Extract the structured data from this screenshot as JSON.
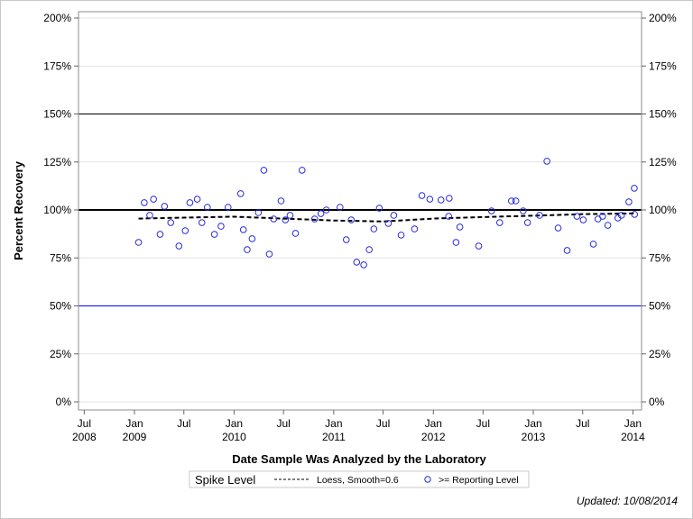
{
  "chart_data": {
    "type": "scatter",
    "xlabel": "Date Sample Was Analyzed by the Laboratory",
    "ylabel": "Percent Recovery",
    "xlim": [
      "2008-06-01",
      "2014-02-01"
    ],
    "ylim": [
      0,
      200
    ],
    "x_ticks": [
      {
        "date": "2008-07-01",
        "label": "Jul",
        "year": "2008"
      },
      {
        "date": "2009-01-01",
        "label": "Jan",
        "year": "2009"
      },
      {
        "date": "2009-07-01",
        "label": "Jul",
        "year": ""
      },
      {
        "date": "2010-01-01",
        "label": "Jan",
        "year": "2010"
      },
      {
        "date": "2010-07-01",
        "label": "Jul",
        "year": ""
      },
      {
        "date": "2011-01-01",
        "label": "Jan",
        "year": "2011"
      },
      {
        "date": "2011-07-01",
        "label": "Jul",
        "year": ""
      },
      {
        "date": "2012-01-01",
        "label": "Jan",
        "year": "2012"
      },
      {
        "date": "2012-07-01",
        "label": "Jul",
        "year": ""
      },
      {
        "date": "2013-01-01",
        "label": "Jan",
        "year": "2013"
      },
      {
        "date": "2013-07-01",
        "label": "Jul",
        "year": ""
      },
      {
        "date": "2014-01-01",
        "label": "Jan",
        "year": "2014"
      }
    ],
    "y_ticks": [
      {
        "value": 0,
        "label": "0%"
      },
      {
        "value": 25,
        "label": "25%"
      },
      {
        "value": 50,
        "label": "50%"
      },
      {
        "value": 75,
        "label": "75%"
      },
      {
        "value": 100,
        "label": "100%"
      },
      {
        "value": 125,
        "label": "125%"
      },
      {
        "value": 150,
        "label": "150%"
      },
      {
        "value": 175,
        "label": "175%"
      },
      {
        "value": 200,
        "label": "200%"
      }
    ],
    "grid": true,
    "reference_lines": [
      {
        "value": 100,
        "color": "#000000",
        "kind": "spike-level"
      },
      {
        "value": 150,
        "color": "#000000",
        "kind": "upper"
      },
      {
        "value": 50,
        "color": "#0000ff",
        "kind": "lower"
      }
    ],
    "series": [
      {
        "name": ">= Reporting Level",
        "marker": "open-circle",
        "color": "#2b2bd9",
        "points": [
          [
            "2009-01-16",
            83.1
          ],
          [
            "2009-02-06",
            103.8
          ],
          [
            "2009-02-26",
            97.2
          ],
          [
            "2009-03-12",
            105.6
          ],
          [
            "2009-04-05",
            87.3
          ],
          [
            "2009-04-21",
            101.9
          ],
          [
            "2009-05-14",
            93.4
          ],
          [
            "2009-06-13",
            81.2
          ],
          [
            "2009-07-06",
            89.2
          ],
          [
            "2009-07-23",
            103.8
          ],
          [
            "2009-08-19",
            105.6
          ],
          [
            "2009-09-05",
            93.4
          ],
          [
            "2009-09-25",
            101.4
          ],
          [
            "2009-10-21",
            87.3
          ],
          [
            "2009-11-14",
            91.5
          ],
          [
            "2009-12-10",
            101.4
          ],
          [
            "2010-01-25",
            108.5
          ],
          [
            "2010-02-04",
            89.7
          ],
          [
            "2010-02-18",
            79.3
          ],
          [
            "2010-03-08",
            85.0
          ],
          [
            "2010-03-31",
            98.6
          ],
          [
            "2010-04-20",
            120.7
          ],
          [
            "2010-05-10",
            77.0
          ],
          [
            "2010-05-26",
            95.3
          ],
          [
            "2010-06-22",
            104.7
          ],
          [
            "2010-07-08",
            94.8
          ],
          [
            "2010-07-25",
            97.2
          ],
          [
            "2010-08-14",
            87.8
          ],
          [
            "2010-09-07",
            120.7
          ],
          [
            "2010-10-23",
            95.3
          ],
          [
            "2010-11-15",
            98.1
          ],
          [
            "2010-12-05",
            100.0
          ],
          [
            "2011-01-24",
            101.4
          ],
          [
            "2011-02-16",
            84.5
          ],
          [
            "2011-03-06",
            94.8
          ],
          [
            "2011-03-26",
            72.8
          ],
          [
            "2011-04-21",
            71.4
          ],
          [
            "2011-05-11",
            79.3
          ],
          [
            "2011-05-28",
            90.1
          ],
          [
            "2011-06-17",
            100.9
          ],
          [
            "2011-07-20",
            93.0
          ],
          [
            "2011-08-09",
            97.2
          ],
          [
            "2011-09-05",
            86.9
          ],
          [
            "2011-10-24",
            90.1
          ],
          [
            "2011-11-20",
            107.5
          ],
          [
            "2011-12-19",
            105.6
          ],
          [
            "2012-01-29",
            105.2
          ],
          [
            "2012-02-28",
            106.1
          ],
          [
            "2012-02-26",
            96.7
          ],
          [
            "2012-03-24",
            83.1
          ],
          [
            "2012-04-07",
            91.1
          ],
          [
            "2012-06-15",
            81.2
          ],
          [
            "2012-08-01",
            99.5
          ],
          [
            "2012-08-31",
            93.4
          ],
          [
            "2012-10-13",
            104.7
          ],
          [
            "2012-10-29",
            104.7
          ],
          [
            "2012-11-25",
            99.5
          ],
          [
            "2012-12-11",
            93.4
          ],
          [
            "2013-01-24",
            97.2
          ],
          [
            "2013-02-20",
            125.4
          ],
          [
            "2013-04-02",
            90.6
          ],
          [
            "2013-05-05",
            78.9
          ],
          [
            "2013-06-10",
            96.7
          ],
          [
            "2013-07-03",
            94.8
          ],
          [
            "2013-08-09",
            82.2
          ],
          [
            "2013-08-26",
            95.3
          ],
          [
            "2013-09-12",
            96.7
          ],
          [
            "2013-10-01",
            92.0
          ],
          [
            "2013-11-07",
            95.8
          ],
          [
            "2013-11-20",
            97.2
          ],
          [
            "2013-12-17",
            104.2
          ],
          [
            "2014-01-06",
            111.3
          ],
          [
            "2014-01-07",
            97.7
          ]
        ]
      },
      {
        "name": "Loess, Smooth=0.6",
        "line": "dashed",
        "color": "#000000",
        "points": [
          [
            "2009-01-16",
            95.5
          ],
          [
            "2009-07-01",
            96.0
          ],
          [
            "2010-01-01",
            96.5
          ],
          [
            "2010-07-01",
            95.5
          ],
          [
            "2011-01-01",
            94.5
          ],
          [
            "2011-07-01",
            94.0
          ],
          [
            "2012-01-01",
            95.5
          ],
          [
            "2012-07-01",
            96.3
          ],
          [
            "2013-01-01",
            97.0
          ],
          [
            "2013-07-01",
            97.8
          ],
          [
            "2014-01-07",
            98.2
          ]
        ]
      }
    ],
    "legend": {
      "placement": "bottom",
      "items": [
        "Spike Level",
        "Loess, Smooth=0.6",
        ">= Reporting Level"
      ]
    }
  },
  "footer": {
    "updated": "Updated: 10/08/2014"
  }
}
